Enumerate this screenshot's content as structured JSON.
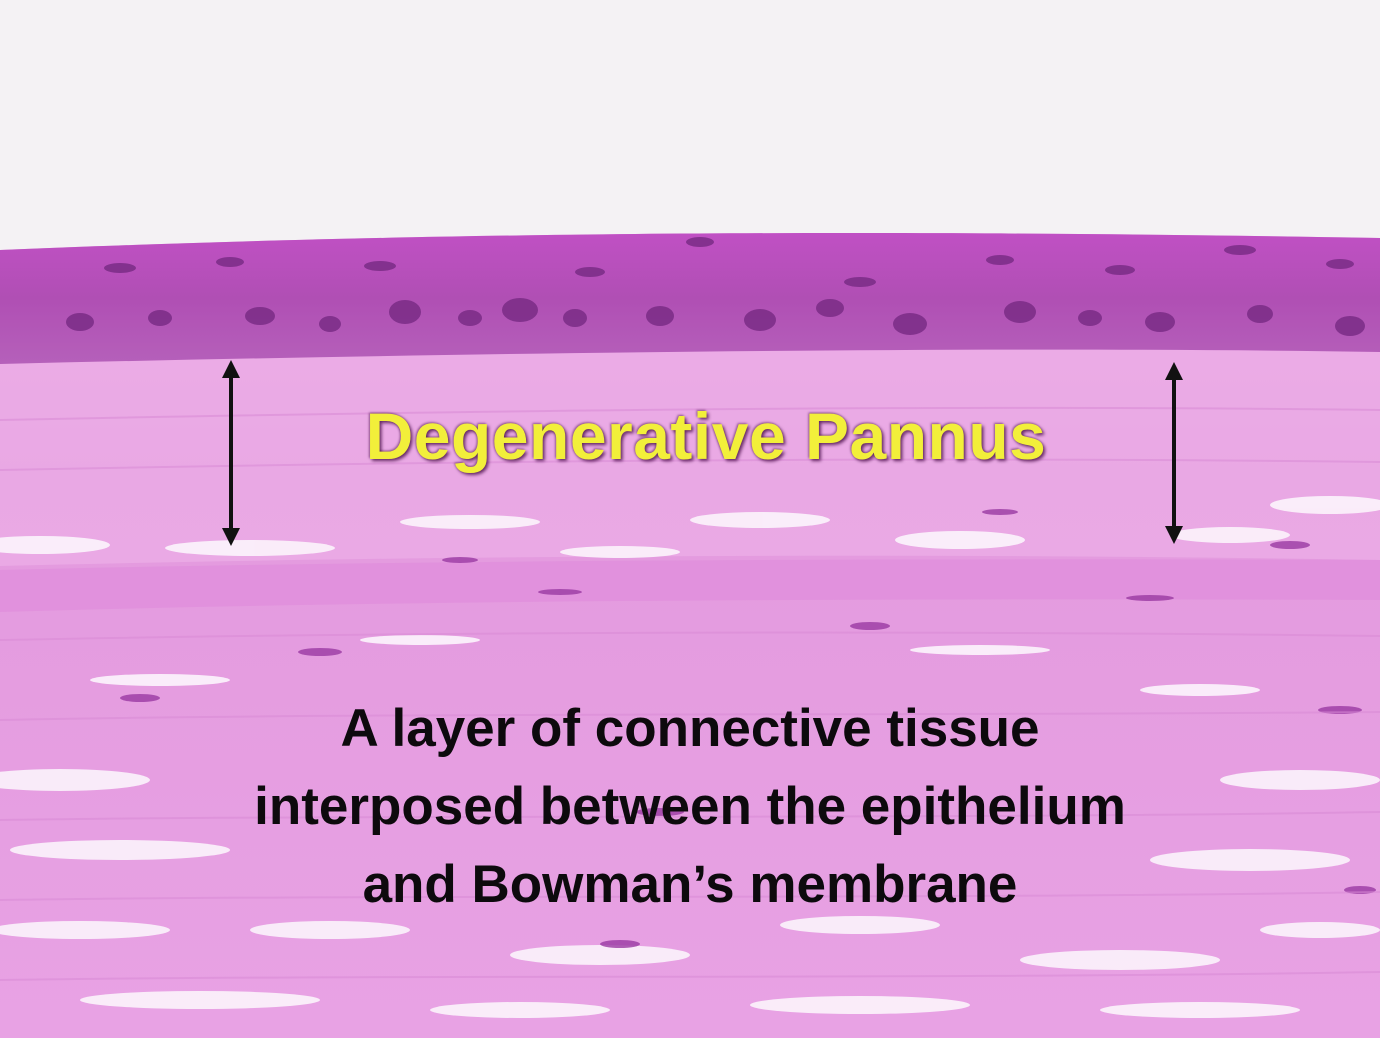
{
  "slide": {
    "title": "Degenerative Pannus",
    "caption_lines": [
      "A layer of connective tissue",
      "interposed between the epithelium",
      "and Bowman’s membrane"
    ]
  },
  "colors": {
    "background": "#f4f2f4",
    "epithelium": "#b04fb4",
    "stroma": "#e59ae0",
    "title_text": "#f2ef3a",
    "caption_text": "#0d0a0d"
  },
  "icons": [
    "double-arrow-icon",
    "double-arrow-icon"
  ]
}
